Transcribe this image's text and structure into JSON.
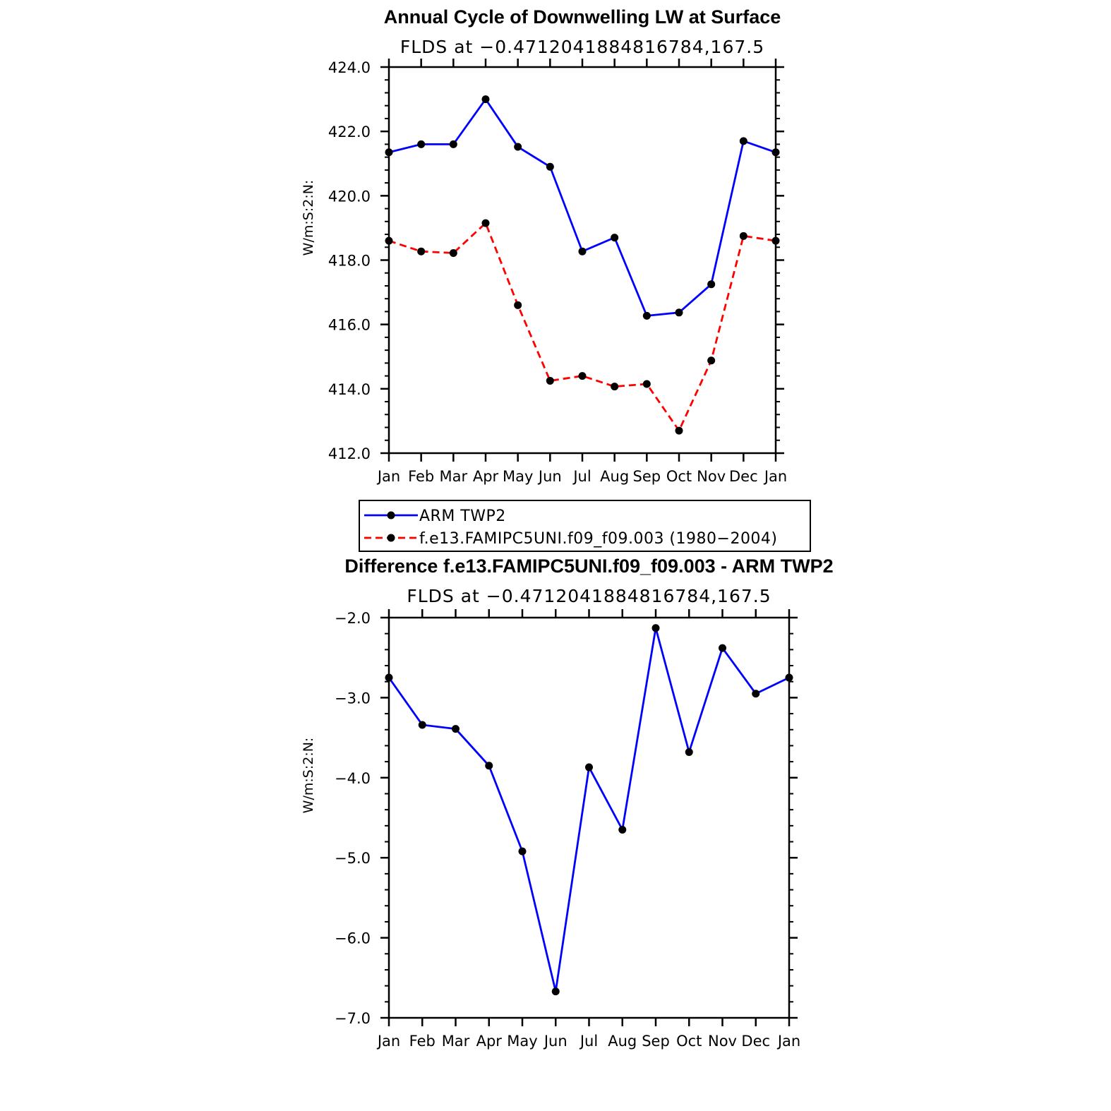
{
  "chart_data": [
    {
      "type": "line",
      "title": "Annual Cycle of Downwelling LW at Surface",
      "subtitle": "FLDS at −0.4712041884816784,167.5",
      "ylabel": "W/m:S:2:N:",
      "categories": [
        "Jan",
        "Feb",
        "Mar",
        "Apr",
        "May",
        "Jun",
        "Jul",
        "Aug",
        "Sep",
        "Oct",
        "Nov",
        "Dec",
        "Jan"
      ],
      "ylim": [
        412.0,
        424.0
      ],
      "yticks": [
        "412.0",
        "414.0",
        "416.0",
        "418.0",
        "420.0",
        "422.0",
        "424.0"
      ],
      "ytick_values": [
        412,
        414,
        416,
        418,
        420,
        422,
        424
      ],
      "series": [
        {
          "name": "ARM TWP2",
          "color": "#0000ff",
          "dash": "solid",
          "values": [
            421.35,
            421.6,
            421.6,
            423.0,
            421.52,
            420.9,
            418.27,
            418.7,
            416.27,
            416.37,
            417.25,
            421.7,
            421.35
          ]
        },
        {
          "name": "f.e13.FAMIPC5UNI.f09_f09.003 (1980−2004)",
          "color": "#ff0000",
          "dash": "dashed",
          "values": [
            418.6,
            418.27,
            418.22,
            419.15,
            416.6,
            414.25,
            414.4,
            414.07,
            414.15,
            412.7,
            414.88,
            418.75,
            418.6
          ]
        }
      ]
    },
    {
      "type": "line",
      "title": "Difference f.e13.FAMIPC5UNI.f09_f09.003 - ARM TWP2",
      "subtitle": "FLDS at −0.4712041884816784,167.5",
      "ylabel": "W/m:S:2:N:",
      "categories": [
        "Jan",
        "Feb",
        "Mar",
        "Apr",
        "May",
        "Jun",
        "Jul",
        "Aug",
        "Sep",
        "Oct",
        "Nov",
        "Dec",
        "Jan"
      ],
      "ylim": [
        -7.0,
        -2.0
      ],
      "yticks": [
        "−7.0",
        "−6.0",
        "−5.0",
        "−4.0",
        "−3.0",
        "−2.0"
      ],
      "ytick_values": [
        -7,
        -6,
        -5,
        -4,
        -3,
        -2
      ],
      "series": [
        {
          "name": "Difference",
          "color": "#0000ff",
          "dash": "solid",
          "values": [
            -2.75,
            -3.34,
            -3.39,
            -3.85,
            -4.92,
            -6.67,
            -3.87,
            -4.65,
            -2.13,
            -3.68,
            -2.38,
            -2.95,
            -2.75
          ]
        }
      ]
    }
  ]
}
